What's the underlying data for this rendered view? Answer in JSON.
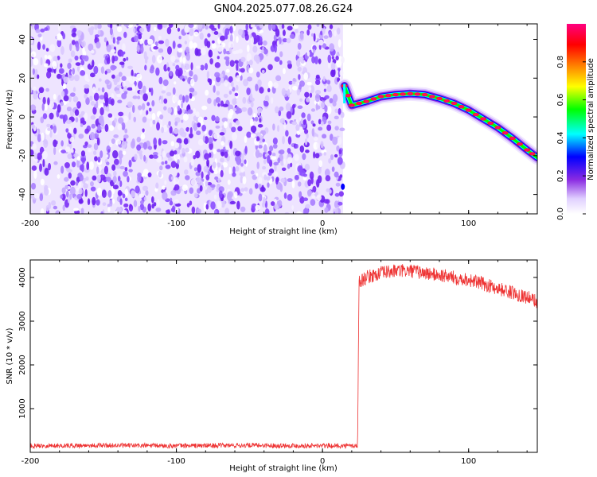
{
  "title": "GN04.2025.077.08.26.G24",
  "chart_data": [
    {
      "type": "heatmap",
      "xlabel": "Height of straight line (km)",
      "ylabel": "Frequency (Hz)",
      "colorbar_label": "Normalized spectral amplitude",
      "xlim": [
        -200,
        147
      ],
      "ylim": [
        -50,
        48
      ],
      "x_ticks": [
        -200,
        -100,
        0,
        100
      ],
      "y_ticks": [
        -40,
        -20,
        0,
        20,
        40
      ],
      "colorbar_ticks": [
        0.0,
        0.2,
        0.4,
        0.6,
        0.8
      ],
      "colorbar_range": [
        0,
        1
      ],
      "colormap": [
        "#ffffff",
        "#d7c4ff",
        "#7d2bff",
        "#0000ff",
        "#00ffff",
        "#00ff00",
        "#ffff00",
        "#ff8000",
        "#ff0000",
        "#ff0080"
      ],
      "noise_region_x": [
        -200,
        14
      ],
      "signal_track": [
        {
          "x": 15,
          "y": 16
        },
        {
          "x": 20,
          "y": 6
        },
        {
          "x": 30,
          "y": 8
        },
        {
          "x": 40,
          "y": 10.5
        },
        {
          "x": 50,
          "y": 11.5
        },
        {
          "x": 60,
          "y": 12
        },
        {
          "x": 70,
          "y": 11.5
        },
        {
          "x": 80,
          "y": 9.5
        },
        {
          "x": 90,
          "y": 7
        },
        {
          "x": 100,
          "y": 3.5
        },
        {
          "x": 110,
          "y": -1
        },
        {
          "x": 120,
          "y": -5.5
        },
        {
          "x": 130,
          "y": -11
        },
        {
          "x": 140,
          "y": -17
        },
        {
          "x": 147,
          "y": -21
        }
      ]
    },
    {
      "type": "line",
      "xlabel": "Height of straight line (km)",
      "ylabel": "SNR (10 * v/v)",
      "xlim": [
        -200,
        147
      ],
      "ylim": [
        0,
        4400
      ],
      "x_ticks": [
        -200,
        -100,
        0,
        100
      ],
      "y_ticks": [
        1000,
        2000,
        3000,
        4000
      ],
      "color": "#ee3333",
      "series": [
        {
          "x": [
            -200,
            -150,
            -100,
            -50,
            0,
            20,
            24,
            25,
            30,
            40,
            50,
            60,
            70,
            80,
            90,
            100,
            110,
            120,
            130,
            140,
            147
          ],
          "values": [
            150,
            160,
            150,
            160,
            150,
            150,
            150,
            3900,
            4000,
            4100,
            4150,
            4150,
            4100,
            4050,
            4000,
            3950,
            3850,
            3750,
            3650,
            3550,
            3450
          ]
        }
      ]
    }
  ]
}
